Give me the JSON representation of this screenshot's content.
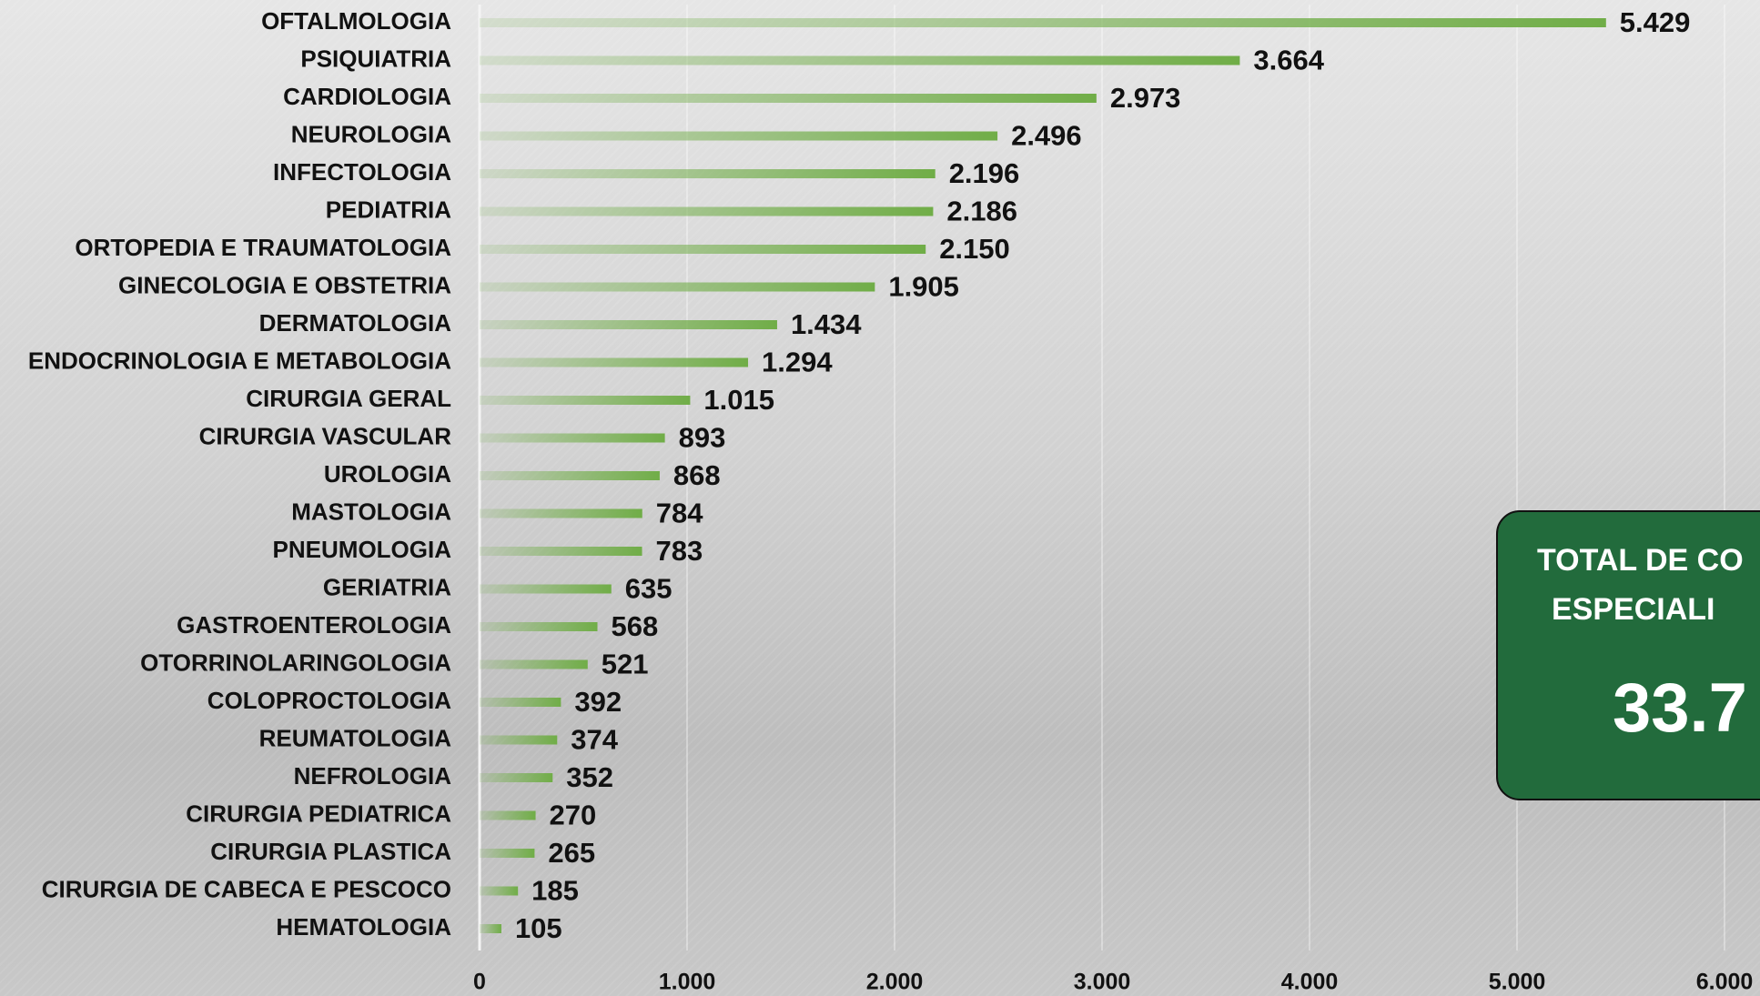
{
  "chart_data": {
    "type": "barh",
    "categories": [
      "OFTALMOLOGIA",
      "PSIQUIATRIA",
      "CARDIOLOGIA",
      "NEUROLOGIA",
      "INFECTOLOGIA",
      "PEDIATRIA",
      "ORTOPEDIA E TRAUMATOLOGIA",
      "GINECOLOGIA E OBSTETRIA",
      "DERMATOLOGIA",
      "ENDOCRINOLOGIA E METABOLOGIA",
      "CIRURGIA GERAL",
      "CIRURGIA VASCULAR",
      "UROLOGIA",
      "MASTOLOGIA",
      "PNEUMOLOGIA",
      "GERIATRIA",
      "GASTROENTEROLOGIA",
      "OTORRINOLARINGOLOGIA",
      "COLOPROCTOLOGIA",
      "REUMATOLOGIA",
      "NEFROLOGIA",
      "CIRURGIA PEDIATRICA",
      "CIRURGIA PLASTICA",
      "CIRURGIA DE CABECA E PESCOCO",
      "HEMATOLOGIA"
    ],
    "values": [
      5429,
      3664,
      2973,
      2496,
      2196,
      2186,
      2150,
      1905,
      1434,
      1294,
      1015,
      893,
      868,
      784,
      783,
      635,
      568,
      521,
      392,
      374,
      352,
      270,
      265,
      185,
      105
    ],
    "value_labels": [
      "5.429",
      "3.664",
      "2.973",
      "2.496",
      "2.196",
      "2.186",
      "2.150",
      "1.905",
      "1.434",
      "1.294",
      "1.015",
      "893",
      "868",
      "784",
      "783",
      "635",
      "568",
      "521",
      "392",
      "374",
      "352",
      "270",
      "265",
      "185",
      "105"
    ],
    "color": "#70ad47",
    "xlim": [
      0,
      6000
    ],
    "xticks": [
      0,
      {
        "value": 1000,
        "label": "1.000"
      },
      {
        "value": 2000,
        "label": "2.000"
      },
      {
        "value": 3000,
        "label": "3.000"
      },
      {
        "value": 4000,
        "label": "4.000"
      },
      {
        "value": 5000,
        "label": "5.000"
      },
      {
        "value": 6000,
        "label": "6.000"
      }
    ],
    "grid": true,
    "annotation": {
      "lines": [
        "TOTAL DE CO",
        "ESPECIALI"
      ],
      "value": "33.7"
    }
  }
}
